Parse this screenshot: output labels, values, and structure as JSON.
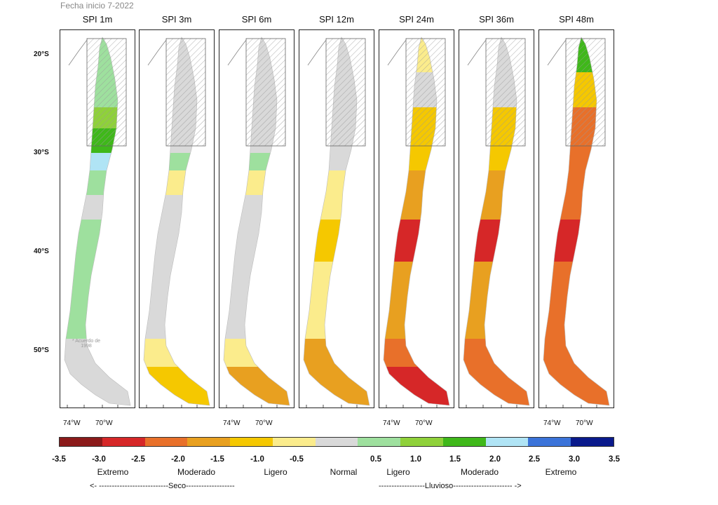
{
  "header": {
    "start_date": "Fecha inicio 7-2022"
  },
  "panels": [
    {
      "title": "SPI 1m"
    },
    {
      "title": "SPI 3m"
    },
    {
      "title": "SPI 6m"
    },
    {
      "title": "SPI 12m"
    },
    {
      "title": "SPI 24m"
    },
    {
      "title": "SPI 36m"
    },
    {
      "title": "SPI 48m"
    }
  ],
  "latitude_labels": [
    "20°S",
    "30°S",
    "40°S",
    "50°S"
  ],
  "longitude_labels": [
    "74°W",
    "70°W"
  ],
  "note": {
    "line1": "* Acuerdo de",
    "line2": "1998"
  },
  "legend": {
    "ticks": [
      "-3.5",
      "-3.0",
      "-2.5",
      "-2.0",
      "-1.5",
      "-1.0",
      "-0.5",
      "0.5",
      "1.0",
      "1.5",
      "2.0",
      "2.5",
      "3.0",
      "3.5"
    ],
    "categories": [
      "Extremo",
      "Moderado",
      "Ligero",
      "Normal",
      "Ligero",
      "Moderado",
      "Extremo"
    ],
    "dry_label": "<- ---------------------------Seco-------------------",
    "wet_label": "------------------Lluvioso----------------------- ->",
    "colors": [
      "#8b1a1a",
      "#d62728",
      "#e8702a",
      "#e8a020",
      "#f5c800",
      "#fbec8c",
      "#d9d9d9",
      "#9ee09e",
      "#8fd13a",
      "#3fb81a",
      "#b0e4f5",
      "#3b73d9",
      "#0a1a8c"
    ]
  },
  "colors": {
    "normal": "#d9d9d9",
    "dry_light": "#fbec8c",
    "dry_mod1": "#f5c800",
    "dry_mod2": "#e8a020",
    "dry_severe": "#e8702a",
    "dry_extreme": "#d62728",
    "dry_extreme2": "#8b1a1a",
    "wet_light": "#9ee09e",
    "wet_mod": "#8fd13a",
    "wet_mod2": "#3fb81a",
    "wet_extreme": "#b0e4f5",
    "wet_extreme2": "#3b73d9"
  },
  "maps": [
    {
      "zones": [
        "wet_light",
        "wet_light",
        "wet_mod",
        "wet_mod2",
        "wet_extreme",
        "wet_light",
        "normal",
        "wet_light",
        "wet_light",
        "wet_light",
        "normal",
        "normal"
      ]
    },
    {
      "zones": [
        "normal",
        "normal",
        "normal",
        "normal",
        "wet_light",
        "dry_light",
        "normal",
        "normal",
        "normal",
        "normal",
        "dry_light",
        "dry_mod1"
      ]
    },
    {
      "zones": [
        "normal",
        "normal",
        "normal",
        "normal",
        "wet_light",
        "dry_light",
        "normal",
        "normal",
        "normal",
        "normal",
        "dry_light",
        "dry_mod2"
      ]
    },
    {
      "zones": [
        "normal",
        "normal",
        "normal",
        "normal",
        "normal",
        "dry_light",
        "dry_light",
        "dry_mod1",
        "dry_light",
        "dry_light",
        "dry_mod2",
        "dry_mod2"
      ]
    },
    {
      "zones": [
        "dry_light",
        "normal",
        "dry_mod1",
        "dry_mod1",
        "dry_mod1",
        "dry_mod2",
        "dry_mod2",
        "dry_extreme",
        "dry_mod2",
        "dry_mod2",
        "dry_severe",
        "dry_extreme"
      ]
    },
    {
      "zones": [
        "normal",
        "normal",
        "dry_mod1",
        "dry_mod1",
        "dry_mod1",
        "dry_mod2",
        "dry_mod2",
        "dry_extreme",
        "dry_mod2",
        "dry_mod2",
        "dry_severe",
        "dry_severe"
      ]
    },
    {
      "zones": [
        "wet_mod2",
        "dry_mod1",
        "dry_severe",
        "dry_severe",
        "dry_severe",
        "dry_severe",
        "dry_severe",
        "dry_extreme",
        "dry_severe",
        "dry_severe",
        "dry_severe",
        "dry_severe"
      ]
    }
  ]
}
